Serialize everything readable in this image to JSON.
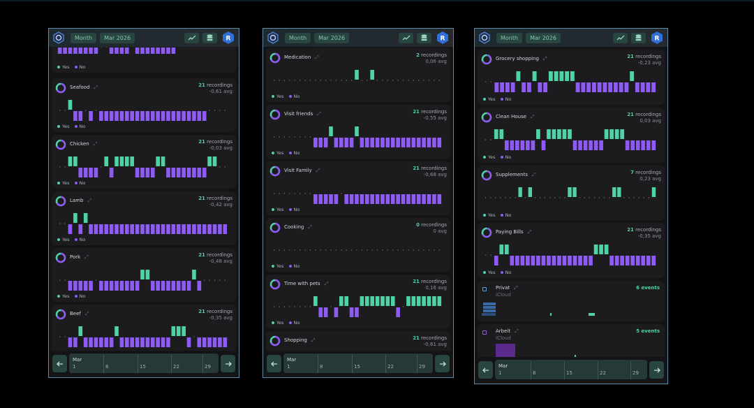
{
  "header": {
    "range_label": "Month",
    "period_label": "Mar 2026",
    "avatar_letter": "R"
  },
  "legend": {
    "yes": "Yes",
    "no": "No"
  },
  "timeline": {
    "month": "Mar",
    "ticks": [
      "1",
      "8",
      "15",
      "22",
      "29"
    ]
  },
  "colors": {
    "yes": "#4fd2a8",
    "no": "#8e5cf5",
    "accent": "#2f6fd6",
    "calendar_privat": "#3c6aa6",
    "calendar_arbeit": "#5b2a8c"
  },
  "icons": {
    "chart": "trend-icon",
    "database": "database-icon",
    "prev": "arrow-left-icon",
    "next": "arrow-right-icon",
    "expand": "expand-icon"
  },
  "panels": [
    {
      "cards": [
        {
          "name": "",
          "recordings": "",
          "avg": "",
          "pattern": "nnnnnnnn..nnnnynnnnnnnnyyyyyyyyyy",
          "partial": true
        },
        {
          "name": "Seafood",
          "recordings": "21 recordings",
          "avg": "-0,61 avg",
          "pattern": "..ynn.n.nnnnnnnnnnnnnnnnnnnnn...."
        },
        {
          "name": "Chicken",
          "recordings": "21 recordings",
          "avg": "-0,03 avg",
          "pattern": "..yynnnn.ynyyyynnnnyynnnnnnnnyy.."
        },
        {
          "name": "Lamb",
          "recordings": "21 recordings",
          "avg": "-0,42 avg",
          "pattern": "..nynynnnnnnnnnnnnnnnnnnnnnnnnnnn"
        },
        {
          "name": "Pork",
          "recordings": "21 recordings",
          "avg": "-0,48 avg",
          "pattern": "..nnnnn.nnnnnnnnyynnnnnnnnyn....."
        },
        {
          "name": "Beef",
          "recordings": "21 recordings",
          "avg": "-0,35 avg",
          "pattern": "..nnynnnnnnynnnnnnnnnnyyyn.nnnnnn"
        }
      ]
    },
    {
      "cards": [
        {
          "name": "Medication",
          "recordings": "2 recordings",
          "avg": "0,06 avg",
          "pattern": "................y..y............."
        },
        {
          "name": "Visit friends",
          "recordings": "21 recordings",
          "avg": "-0,55 avg",
          "pattern": "........nnnynnnnynnnnnnnnnnnnnnnn"
        },
        {
          "name": "Visit Family",
          "recordings": "21 recordings",
          "avg": "-0,68 avg",
          "pattern": "........nnnnn.nnnnnnnnnnnnnnnnnnn"
        },
        {
          "name": "Cooking",
          "recordings": "0 recordings",
          "avg": "0 avg",
          "pattern": "................................."
        },
        {
          "name": "Time with pets",
          "recordings": "21 recordings",
          "avg": "0,16 avg",
          "pattern": "........ynn.nyynnyyyyyyyn.yyyyyyy"
        },
        {
          "name": "Shopping",
          "recordings": "21 recordings",
          "avg": "-0,61 avg",
          "pattern": "",
          "partial": true
        }
      ]
    },
    {
      "cards": [
        {
          "name": "Grocery shopping",
          "recordings": "21 recordings",
          "avg": "-0,23 avg",
          "pattern": "..nnnnynnynnyyyyynnnnnnnnnnynnnn"
        },
        {
          "name": "Clean House",
          "recordings": "21 recordings",
          "avg": "0,03 avg",
          "pattern": "..yynnnnnnynyyyyynnnnnnyyyynnnnnn"
        },
        {
          "name": "Supplements",
          "recordings": "7 recordings",
          "avg": "0,23 avg",
          "pattern": ".......y.y.......yy.......yy......y"
        },
        {
          "name": "Paying Bills",
          "recordings": "21 recordings",
          "avg": "-0,35 avg",
          "pattern": "..nyynnnnnnnnnnnnnnnnyyynnnnnnnnn"
        }
      ],
      "calendars": [
        {
          "name": "Privat",
          "source": "iCloud",
          "events": "6 events"
        },
        {
          "name": "Arbeit",
          "source": "iCloud",
          "events": "5 events"
        }
      ]
    }
  ]
}
